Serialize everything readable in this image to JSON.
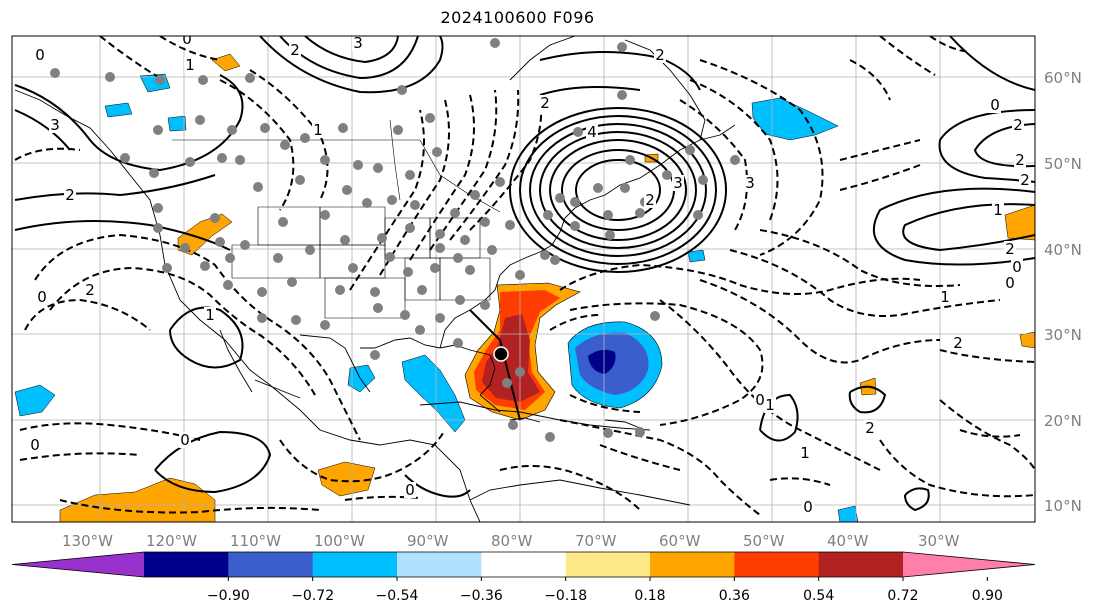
{
  "title": "2024100600 F096",
  "longitude_labels": [
    "130°W",
    "120°W",
    "110°W",
    "100°W",
    "90°W",
    "80°W",
    "70°W",
    "60°W",
    "50°W",
    "40°W",
    "30°W"
  ],
  "latitude_labels": [
    "60°N",
    "50°N",
    "40°N",
    "30°N",
    "20°N",
    "10°N"
  ],
  "colorbar": {
    "tick_labels": [
      "−0.90",
      "−0.72",
      "−0.54",
      "−0.36",
      "−0.18",
      "0.18",
      "0.36",
      "0.54",
      "0.72",
      "0.90"
    ],
    "colors": [
      "#9932cc",
      "#00008b",
      "#3a5fcd",
      "#00bfff",
      "#b0e2ff",
      "#ffffff",
      "#ffe88a",
      "#ffa500",
      "#ff3d00",
      "#b22222",
      "#ff7fa8"
    ]
  },
  "contour_labels": [
    "0",
    "1",
    "0",
    "3",
    "2",
    "1",
    "2",
    "3",
    "2",
    "4",
    "2",
    "3",
    "2",
    "3",
    "2",
    "1",
    "2",
    "0",
    "0",
    "1",
    "2",
    "2",
    "0",
    "0",
    "1",
    "2",
    "1",
    "0",
    "1",
    "0",
    "0",
    "2",
    "2",
    "0",
    "0"
  ],
  "colors": {
    "grid": "#b3b3b3",
    "coast": "#000000",
    "observation_marker": "#808080"
  }
}
